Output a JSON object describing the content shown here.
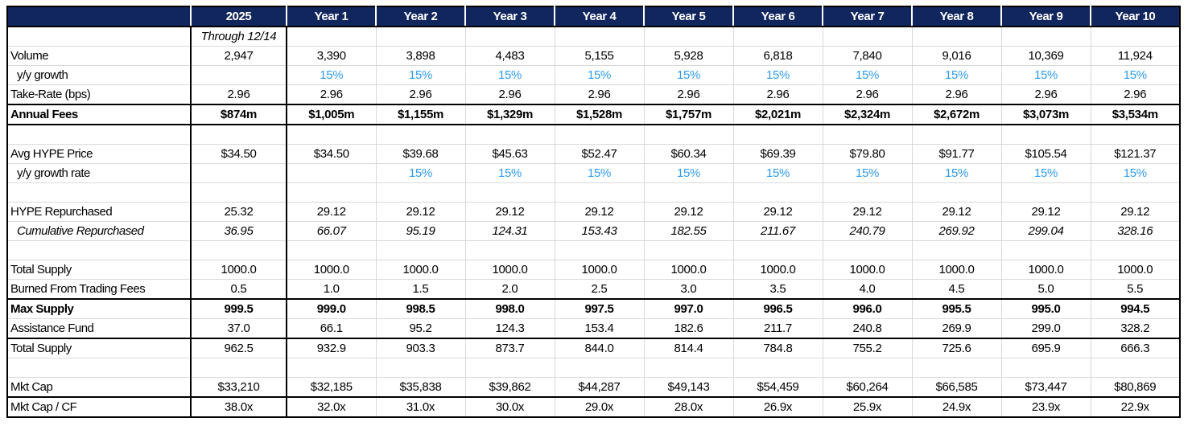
{
  "colors": {
    "header_bg": "#12265E",
    "header_text": "#FFFFFF",
    "growth_blue": "#2E9BF0",
    "gridline": "#D9D9D9",
    "section_border": "#000000"
  },
  "table": {
    "corner_label": "",
    "columns": [
      "2025",
      "Year 1",
      "Year 2",
      "Year 3",
      "Year 4",
      "Year 5",
      "Year 6",
      "Year 7",
      "Year 8",
      "Year 9",
      "Year 10"
    ],
    "rows": [
      {
        "id": "period-note",
        "label": "",
        "style": [
          "italic-first"
        ],
        "values": [
          "Through 12/14",
          "",
          "",
          "",
          "",
          "",
          "",
          "",
          "",
          "",
          ""
        ]
      },
      {
        "id": "volume",
        "label": "Volume",
        "values": [
          "2,947",
          "3,390",
          "3,898",
          "4,483",
          "5,155",
          "5,928",
          "6,818",
          "7,840",
          "9,016",
          "10,369",
          "11,924"
        ]
      },
      {
        "id": "volume-growth",
        "label": "y/y growth",
        "style": [
          "indent",
          "blue"
        ],
        "values": [
          "",
          "15%",
          "15%",
          "15%",
          "15%",
          "15%",
          "15%",
          "15%",
          "15%",
          "15%",
          "15%"
        ]
      },
      {
        "id": "take-rate",
        "label": "Take-Rate (bps)",
        "values": [
          "2.96",
          "2.96",
          "2.96",
          "2.96",
          "2.96",
          "2.96",
          "2.96",
          "2.96",
          "2.96",
          "2.96",
          "2.96"
        ]
      },
      {
        "id": "annual-fees",
        "label": "Annual Fees",
        "style": [
          "bold",
          "b-top",
          "b-bot"
        ],
        "values": [
          "$874m",
          "$1,005m",
          "$1,155m",
          "$1,329m",
          "$1,528m",
          "$1,757m",
          "$2,021m",
          "$2,324m",
          "$2,672m",
          "$3,073m",
          "$3,534m"
        ]
      },
      {
        "id": "spacer-1",
        "label": "",
        "blank": true,
        "values": [
          "",
          "",
          "",
          "",
          "",
          "",
          "",
          "",
          "",
          "",
          ""
        ]
      },
      {
        "id": "avg-hype-price",
        "label": "Avg HYPE Price",
        "values": [
          "$34.50",
          "$34.50",
          "$39.68",
          "$45.63",
          "$52.47",
          "$60.34",
          "$69.39",
          "$79.80",
          "$91.77",
          "$105.54",
          "$121.37"
        ]
      },
      {
        "id": "price-growth",
        "label": "y/y growth rate",
        "style": [
          "indent",
          "blue"
        ],
        "values": [
          "",
          "",
          "15%",
          "15%",
          "15%",
          "15%",
          "15%",
          "15%",
          "15%",
          "15%",
          "15%"
        ]
      },
      {
        "id": "spacer-2",
        "label": "",
        "blank": true,
        "values": [
          "",
          "",
          "",
          "",
          "",
          "",
          "",
          "",
          "",
          "",
          ""
        ]
      },
      {
        "id": "hype-repurchased",
        "label": "HYPE Repurchased",
        "values": [
          "25.32",
          "29.12",
          "29.12",
          "29.12",
          "29.12",
          "29.12",
          "29.12",
          "29.12",
          "29.12",
          "29.12",
          "29.12"
        ]
      },
      {
        "id": "cumulative-repurchased",
        "label": "Cumulative Repurchased",
        "style": [
          "indent",
          "italic"
        ],
        "values": [
          "36.95",
          "66.07",
          "95.19",
          "124.31",
          "153.43",
          "182.55",
          "211.67",
          "240.79",
          "269.92",
          "299.04",
          "328.16"
        ]
      },
      {
        "id": "spacer-3",
        "label": "",
        "blank": true,
        "values": [
          "",
          "",
          "",
          "",
          "",
          "",
          "",
          "",
          "",
          "",
          ""
        ]
      },
      {
        "id": "total-supply",
        "label": "Total Supply",
        "values": [
          "1000.0",
          "1000.0",
          "1000.0",
          "1000.0",
          "1000.0",
          "1000.0",
          "1000.0",
          "1000.0",
          "1000.0",
          "1000.0",
          "1000.0"
        ]
      },
      {
        "id": "burned-from-trading-fees",
        "label": "Burned From Trading Fees",
        "values": [
          "0.5",
          "1.0",
          "1.5",
          "2.0",
          "2.5",
          "3.0",
          "3.5",
          "4.0",
          "4.5",
          "5.0",
          "5.5"
        ]
      },
      {
        "id": "max-supply",
        "label": "Max Supply",
        "style": [
          "bold",
          "b-top"
        ],
        "values": [
          "999.5",
          "999.0",
          "998.5",
          "998.0",
          "997.5",
          "997.0",
          "996.5",
          "996.0",
          "995.5",
          "995.0",
          "994.5"
        ]
      },
      {
        "id": "assistance-fund",
        "label": "Assistance Fund",
        "style": [
          "b-bot"
        ],
        "values": [
          "37.0",
          "66.1",
          "95.2",
          "124.3",
          "153.4",
          "182.6",
          "211.7",
          "240.8",
          "269.9",
          "299.0",
          "328.2"
        ]
      },
      {
        "id": "net-total-supply",
        "label": "Total Supply",
        "values": [
          "962.5",
          "932.9",
          "903.3",
          "873.7",
          "844.0",
          "814.4",
          "784.8",
          "755.2",
          "725.6",
          "695.9",
          "666.3"
        ]
      },
      {
        "id": "spacer-4",
        "label": "",
        "blank": true,
        "values": [
          "",
          "",
          "",
          "",
          "",
          "",
          "",
          "",
          "",
          "",
          ""
        ]
      },
      {
        "id": "mkt-cap",
        "label": "Mkt Cap",
        "style": [
          "b-bot"
        ],
        "values": [
          "$33,210",
          "$32,185",
          "$35,838",
          "$39,862",
          "$44,287",
          "$49,143",
          "$54,459",
          "$60,264",
          "$66,585",
          "$73,447",
          "$80,869"
        ]
      },
      {
        "id": "mkt-cap-cf",
        "label": "Mkt Cap / CF",
        "values": [
          "38.0x",
          "32.0x",
          "31.0x",
          "30.0x",
          "29.0x",
          "28.0x",
          "26.9x",
          "25.9x",
          "24.9x",
          "23.9x",
          "22.9x"
        ]
      }
    ]
  }
}
